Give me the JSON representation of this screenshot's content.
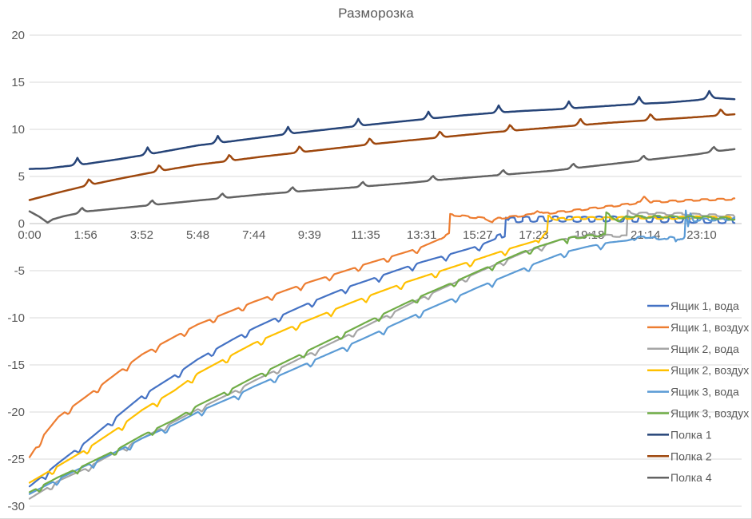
{
  "chart_data": {
    "type": "line",
    "title": "Разморозка",
    "grid": "horizontal-only",
    "legend_position": "right",
    "colors": {
      "grid": "#d9d9d9",
      "zero_axis": "#bfbfbf",
      "tick_text": "#595959",
      "legend_text": "#595959",
      "title_text": "#595959"
    },
    "x_axis": {
      "unit": "time (h:mm)",
      "range_hours": [
        0,
        24.3
      ],
      "tick_labels": [
        "0:00",
        "1:56",
        "3:52",
        "5:48",
        "7:44",
        "9:39",
        "11:35",
        "13:31",
        "15:27",
        "17:23",
        "19:18",
        "21:14",
        "23:10"
      ],
      "tick_hours": [
        0,
        1.933,
        3.867,
        5.8,
        7.733,
        9.65,
        11.583,
        13.517,
        15.45,
        17.383,
        19.3,
        21.233,
        23.167
      ]
    },
    "y_axis": {
      "unit": "°C",
      "ticks": [
        20,
        15,
        10,
        5,
        0,
        -5,
        -10,
        -15,
        -20,
        -25,
        -30
      ],
      "ylim": [
        -30,
        20
      ]
    },
    "series": [
      {
        "name": "Ящик 1, вода",
        "color": "#4472C4",
        "kind": "box",
        "knots": [
          [
            0,
            -27.9
          ],
          [
            1,
            -25.4
          ],
          [
            1.93,
            -23.2
          ],
          [
            3,
            -20.5
          ],
          [
            3.87,
            -18.3
          ],
          [
            5,
            -16.1
          ],
          [
            5.8,
            -14.4
          ],
          [
            7,
            -12.3
          ],
          [
            7.73,
            -11.1
          ],
          [
            9,
            -9.3
          ],
          [
            9.65,
            -8.4
          ],
          [
            11,
            -6.7
          ],
          [
            11.58,
            -6.1
          ],
          [
            13,
            -4.6
          ],
          [
            13.5,
            -4.1
          ],
          [
            15,
            -2.8
          ],
          [
            15.43,
            -2.4
          ],
          [
            16,
            -1.7
          ],
          [
            16.38,
            -1.1
          ],
          [
            16.42,
            0.9
          ],
          [
            16.55,
            0.35
          ],
          [
            17,
            0.45
          ],
          [
            18,
            0.5
          ],
          [
            19,
            0.45
          ],
          [
            20,
            0.5
          ],
          [
            21,
            0.45
          ],
          [
            22,
            0.4
          ],
          [
            23,
            0.35
          ],
          [
            24.3,
            0.3
          ]
        ],
        "texture": {
          "notch_depth": 0.6,
          "notch_period_h": 1.15,
          "notch_phase_h": 0.55,
          "wobble_amp": 0.28,
          "wobble_period_h": 0.5
        }
      },
      {
        "name": "Ящик 1, воздух",
        "color": "#ED7D31",
        "kind": "box",
        "knots": [
          [
            0,
            -24.8
          ],
          [
            0.5,
            -22.4
          ],
          [
            1,
            -20.5
          ],
          [
            1.93,
            -18.4
          ],
          [
            3,
            -15.9
          ],
          [
            3.87,
            -13.9
          ],
          [
            5,
            -12.0
          ],
          [
            5.8,
            -10.7
          ],
          [
            7,
            -9.2
          ],
          [
            7.73,
            -8.3
          ],
          [
            9,
            -6.9
          ],
          [
            9.65,
            -6.2
          ],
          [
            11,
            -4.9
          ],
          [
            11.58,
            -4.3
          ],
          [
            13,
            -3.0
          ],
          [
            13.5,
            -2.5
          ],
          [
            14.1,
            -1.7
          ],
          [
            14.46,
            -1.1
          ],
          [
            14.5,
            0.95
          ],
          [
            15.2,
            0.7
          ],
          [
            15.7,
            0.55
          ],
          [
            15.95,
            0.2
          ],
          [
            16.15,
            0.55
          ],
          [
            17.3,
            0.95
          ],
          [
            17.5,
            1.4
          ],
          [
            17.7,
            1.05
          ],
          [
            18.5,
            1.3
          ],
          [
            19.5,
            1.65
          ],
          [
            20.5,
            2.0
          ],
          [
            21.05,
            2.25
          ],
          [
            21.2,
            2.9
          ],
          [
            21.4,
            2.3
          ],
          [
            22,
            2.35
          ],
          [
            23,
            2.5
          ],
          [
            24.3,
            2.6
          ]
        ],
        "texture": {
          "notch_depth": 0.55,
          "notch_period_h": 1.0,
          "notch_phase_h": 0.35,
          "wobble_amp": 0.08,
          "wobble_period_h": 0.55
        }
      },
      {
        "name": "Ящик 2, вода",
        "color": "#A5A5A5",
        "kind": "box",
        "knots": [
          [
            0,
            -29.2
          ],
          [
            1,
            -27.3
          ],
          [
            1.93,
            -26.0
          ],
          [
            3,
            -24.2
          ],
          [
            3.87,
            -22.8
          ],
          [
            5,
            -21.0
          ],
          [
            5.8,
            -19.7
          ],
          [
            7,
            -17.9
          ],
          [
            7.73,
            -16.7
          ],
          [
            9,
            -14.8
          ],
          [
            9.65,
            -13.8
          ],
          [
            11,
            -11.8
          ],
          [
            11.58,
            -10.9
          ],
          [
            13,
            -8.7
          ],
          [
            13.5,
            -7.9
          ],
          [
            15,
            -5.8
          ],
          [
            15.43,
            -5.2
          ],
          [
            17,
            -3.1
          ],
          [
            17.38,
            -2.7
          ],
          [
            18.3,
            -1.7
          ],
          [
            19.3,
            -1.2
          ],
          [
            20.1,
            -1.3
          ],
          [
            20.58,
            -1.35
          ],
          [
            20.62,
            1.3
          ],
          [
            20.9,
            1.05
          ],
          [
            21.5,
            1.1
          ],
          [
            22,
            1.0
          ],
          [
            22.5,
            1.05
          ],
          [
            23,
            0.95
          ],
          [
            23.5,
            0.9
          ],
          [
            24.3,
            0.8
          ]
        ],
        "texture": {
          "notch_depth": 0.5,
          "notch_period_h": 1.3,
          "notch_phase_h": 0.75,
          "wobble_amp": 0.1,
          "wobble_period_h": 0.6
        }
      },
      {
        "name": "Ящик 2, воздух",
        "color": "#FFC000",
        "kind": "box",
        "knots": [
          [
            0,
            -27.5
          ],
          [
            1,
            -25.7
          ],
          [
            1.93,
            -24.0
          ],
          [
            3,
            -21.8
          ],
          [
            3.87,
            -19.8
          ],
          [
            5,
            -17.7
          ],
          [
            5.8,
            -15.9
          ],
          [
            7,
            -13.9
          ],
          [
            7.73,
            -12.7
          ],
          [
            9,
            -11.0
          ],
          [
            9.65,
            -10.2
          ],
          [
            11,
            -8.5
          ],
          [
            11.58,
            -7.8
          ],
          [
            13,
            -6.2
          ],
          [
            13.5,
            -5.7
          ],
          [
            15,
            -4.2
          ],
          [
            15.43,
            -3.8
          ],
          [
            16.5,
            -2.7
          ],
          [
            17.38,
            -1.9
          ],
          [
            17.7,
            -1.4
          ],
          [
            17.84,
            -0.95
          ],
          [
            17.88,
            0.75
          ],
          [
            18.2,
            0.45
          ],
          [
            19,
            0.6
          ],
          [
            20,
            0.55
          ],
          [
            21,
            0.65
          ],
          [
            22,
            0.6
          ],
          [
            23,
            0.65
          ],
          [
            24.3,
            0.6
          ]
        ],
        "texture": {
          "notch_depth": 0.6,
          "notch_period_h": 1.2,
          "notch_phase_h": 0.8,
          "wobble_amp": 0.12,
          "wobble_period_h": 0.52
        }
      },
      {
        "name": "Ящик 3, вода",
        "color": "#5B9BD5",
        "kind": "box",
        "knots": [
          [
            0,
            -28.7
          ],
          [
            1,
            -27.1
          ],
          [
            1.93,
            -25.7
          ],
          [
            3,
            -24.2
          ],
          [
            3.87,
            -22.8
          ],
          [
            5,
            -21.3
          ],
          [
            5.8,
            -20.0
          ],
          [
            7,
            -18.4
          ],
          [
            7.73,
            -17.3
          ],
          [
            9,
            -15.6
          ],
          [
            9.65,
            -14.7
          ],
          [
            11,
            -12.9
          ],
          [
            11.58,
            -12.1
          ],
          [
            13,
            -10.1
          ],
          [
            13.5,
            -9.4
          ],
          [
            15,
            -7.4
          ],
          [
            15.43,
            -6.8
          ],
          [
            17,
            -4.8
          ],
          [
            17.38,
            -4.3
          ],
          [
            18.5,
            -3.0
          ],
          [
            19.3,
            -2.4
          ],
          [
            20,
            -2.0
          ],
          [
            20.6,
            -1.8
          ],
          [
            21,
            -1.5
          ],
          [
            21.4,
            -1.4
          ],
          [
            21.7,
            -1.7
          ],
          [
            22.1,
            -1.5
          ],
          [
            22.4,
            -1.7
          ],
          [
            22.58,
            -1.45
          ],
          [
            22.62,
            1.3
          ],
          [
            22.7,
            -0.4
          ],
          [
            22.78,
            1.0
          ],
          [
            22.9,
            0.3
          ],
          [
            23.2,
            0.45
          ],
          [
            23.6,
            0.4
          ],
          [
            24.3,
            0.5
          ]
        ],
        "texture": {
          "notch_depth": 0.6,
          "notch_period_h": 1.25,
          "notch_phase_h": 0.95,
          "wobble_amp": 0.1,
          "wobble_period_h": 0.55
        }
      },
      {
        "name": "Ящик 3, воздух",
        "color": "#70AD47",
        "kind": "box",
        "knots": [
          [
            0,
            -28.5
          ],
          [
            1,
            -26.9
          ],
          [
            1.93,
            -25.6
          ],
          [
            3,
            -24.0
          ],
          [
            3.87,
            -22.5
          ],
          [
            5,
            -20.8
          ],
          [
            5.8,
            -19.3
          ],
          [
            7,
            -17.5
          ],
          [
            7.73,
            -16.3
          ],
          [
            9,
            -14.4
          ],
          [
            9.65,
            -13.4
          ],
          [
            11,
            -11.4
          ],
          [
            11.58,
            -10.5
          ],
          [
            13,
            -8.4
          ],
          [
            13.5,
            -7.7
          ],
          [
            15,
            -5.7
          ],
          [
            15.43,
            -5.1
          ],
          [
            17,
            -3.0
          ],
          [
            17.38,
            -2.6
          ],
          [
            18.3,
            -1.7
          ],
          [
            19.2,
            -1.35
          ],
          [
            19.84,
            -1.2
          ],
          [
            19.88,
            1.1
          ],
          [
            20.05,
            0.8
          ],
          [
            20.35,
            0.2
          ],
          [
            20.6,
            0.8
          ],
          [
            21.2,
            0.7
          ],
          [
            21.8,
            0.75
          ],
          [
            22.4,
            0.65
          ],
          [
            23,
            0.7
          ],
          [
            23.6,
            0.6
          ],
          [
            24.3,
            0.5
          ]
        ],
        "texture": {
          "notch_depth": 0.55,
          "notch_period_h": 1.3,
          "notch_phase_h": 0.35,
          "wobble_amp": 0.1,
          "wobble_period_h": 0.58
        }
      },
      {
        "name": "Полка 1",
        "color": "#264478",
        "kind": "shelf",
        "knots": [
          [
            0,
            5.8
          ],
          [
            0.6,
            5.85
          ],
          [
            1,
            6.0
          ],
          [
            2,
            6.35
          ],
          [
            3,
            6.8
          ],
          [
            4,
            7.3
          ],
          [
            5,
            7.85
          ],
          [
            5.8,
            8.3
          ],
          [
            7,
            8.75
          ],
          [
            8,
            9.15
          ],
          [
            9,
            9.55
          ],
          [
            10,
            9.9
          ],
          [
            11,
            10.25
          ],
          [
            11.58,
            10.45
          ],
          [
            13,
            10.9
          ],
          [
            14,
            11.2
          ],
          [
            15,
            11.5
          ],
          [
            16,
            11.75
          ],
          [
            17,
            11.95
          ],
          [
            18,
            12.1
          ],
          [
            19,
            12.3
          ],
          [
            20,
            12.5
          ],
          [
            21,
            12.7
          ],
          [
            22,
            12.85
          ],
          [
            23,
            13.1
          ],
          [
            23.5,
            13.35
          ],
          [
            24.3,
            13.2
          ]
        ],
        "texture": {
          "spike_amp": 0.75,
          "spike_period_h": 2.42,
          "spike_phase_h": 1.65
        }
      },
      {
        "name": "Полка 2",
        "color": "#9E480E",
        "kind": "shelf",
        "knots": [
          [
            0,
            2.5
          ],
          [
            0.5,
            2.9
          ],
          [
            1,
            3.3
          ],
          [
            2,
            4.05
          ],
          [
            3,
            4.7
          ],
          [
            4,
            5.3
          ],
          [
            5,
            5.85
          ],
          [
            5.8,
            6.25
          ],
          [
            7,
            6.7
          ],
          [
            8,
            7.1
          ],
          [
            9,
            7.45
          ],
          [
            10,
            7.8
          ],
          [
            11,
            8.15
          ],
          [
            11.58,
            8.35
          ],
          [
            13,
            8.8
          ],
          [
            14,
            9.1
          ],
          [
            15,
            9.4
          ],
          [
            16,
            9.7
          ],
          [
            17,
            9.95
          ],
          [
            18,
            10.2
          ],
          [
            19,
            10.45
          ],
          [
            20,
            10.7
          ],
          [
            21,
            10.9
          ],
          [
            22,
            11.1
          ],
          [
            23,
            11.3
          ],
          [
            24.3,
            11.6
          ]
        ],
        "texture": {
          "spike_amp": 0.7,
          "spike_period_h": 2.42,
          "spike_phase_h": 2.05
        }
      },
      {
        "name": "Полка 4",
        "color": "#636363",
        "kind": "shelf",
        "knots": [
          [
            0,
            1.3
          ],
          [
            0.35,
            0.7
          ],
          [
            0.62,
            0.1
          ],
          [
            0.8,
            0.45
          ],
          [
            1.2,
            0.8
          ],
          [
            2,
            1.3
          ],
          [
            3,
            1.6
          ],
          [
            4,
            1.9
          ],
          [
            5,
            2.2
          ],
          [
            5.8,
            2.45
          ],
          [
            7,
            2.8
          ],
          [
            8,
            3.1
          ],
          [
            9,
            3.35
          ],
          [
            9.65,
            3.5
          ],
          [
            11,
            3.8
          ],
          [
            11.58,
            3.95
          ],
          [
            13,
            4.3
          ],
          [
            14,
            4.6
          ],
          [
            15,
            4.85
          ],
          [
            16,
            5.1
          ],
          [
            17,
            5.35
          ],
          [
            18,
            5.6
          ],
          [
            19,
            5.95
          ],
          [
            20,
            6.3
          ],
          [
            21,
            6.65
          ],
          [
            22,
            7.0
          ],
          [
            23,
            7.35
          ],
          [
            23.6,
            7.65
          ],
          [
            24.3,
            7.9
          ]
        ],
        "texture": {
          "spike_amp": 0.55,
          "spike_period_h": 2.42,
          "spike_phase_h": 1.8
        }
      }
    ]
  }
}
